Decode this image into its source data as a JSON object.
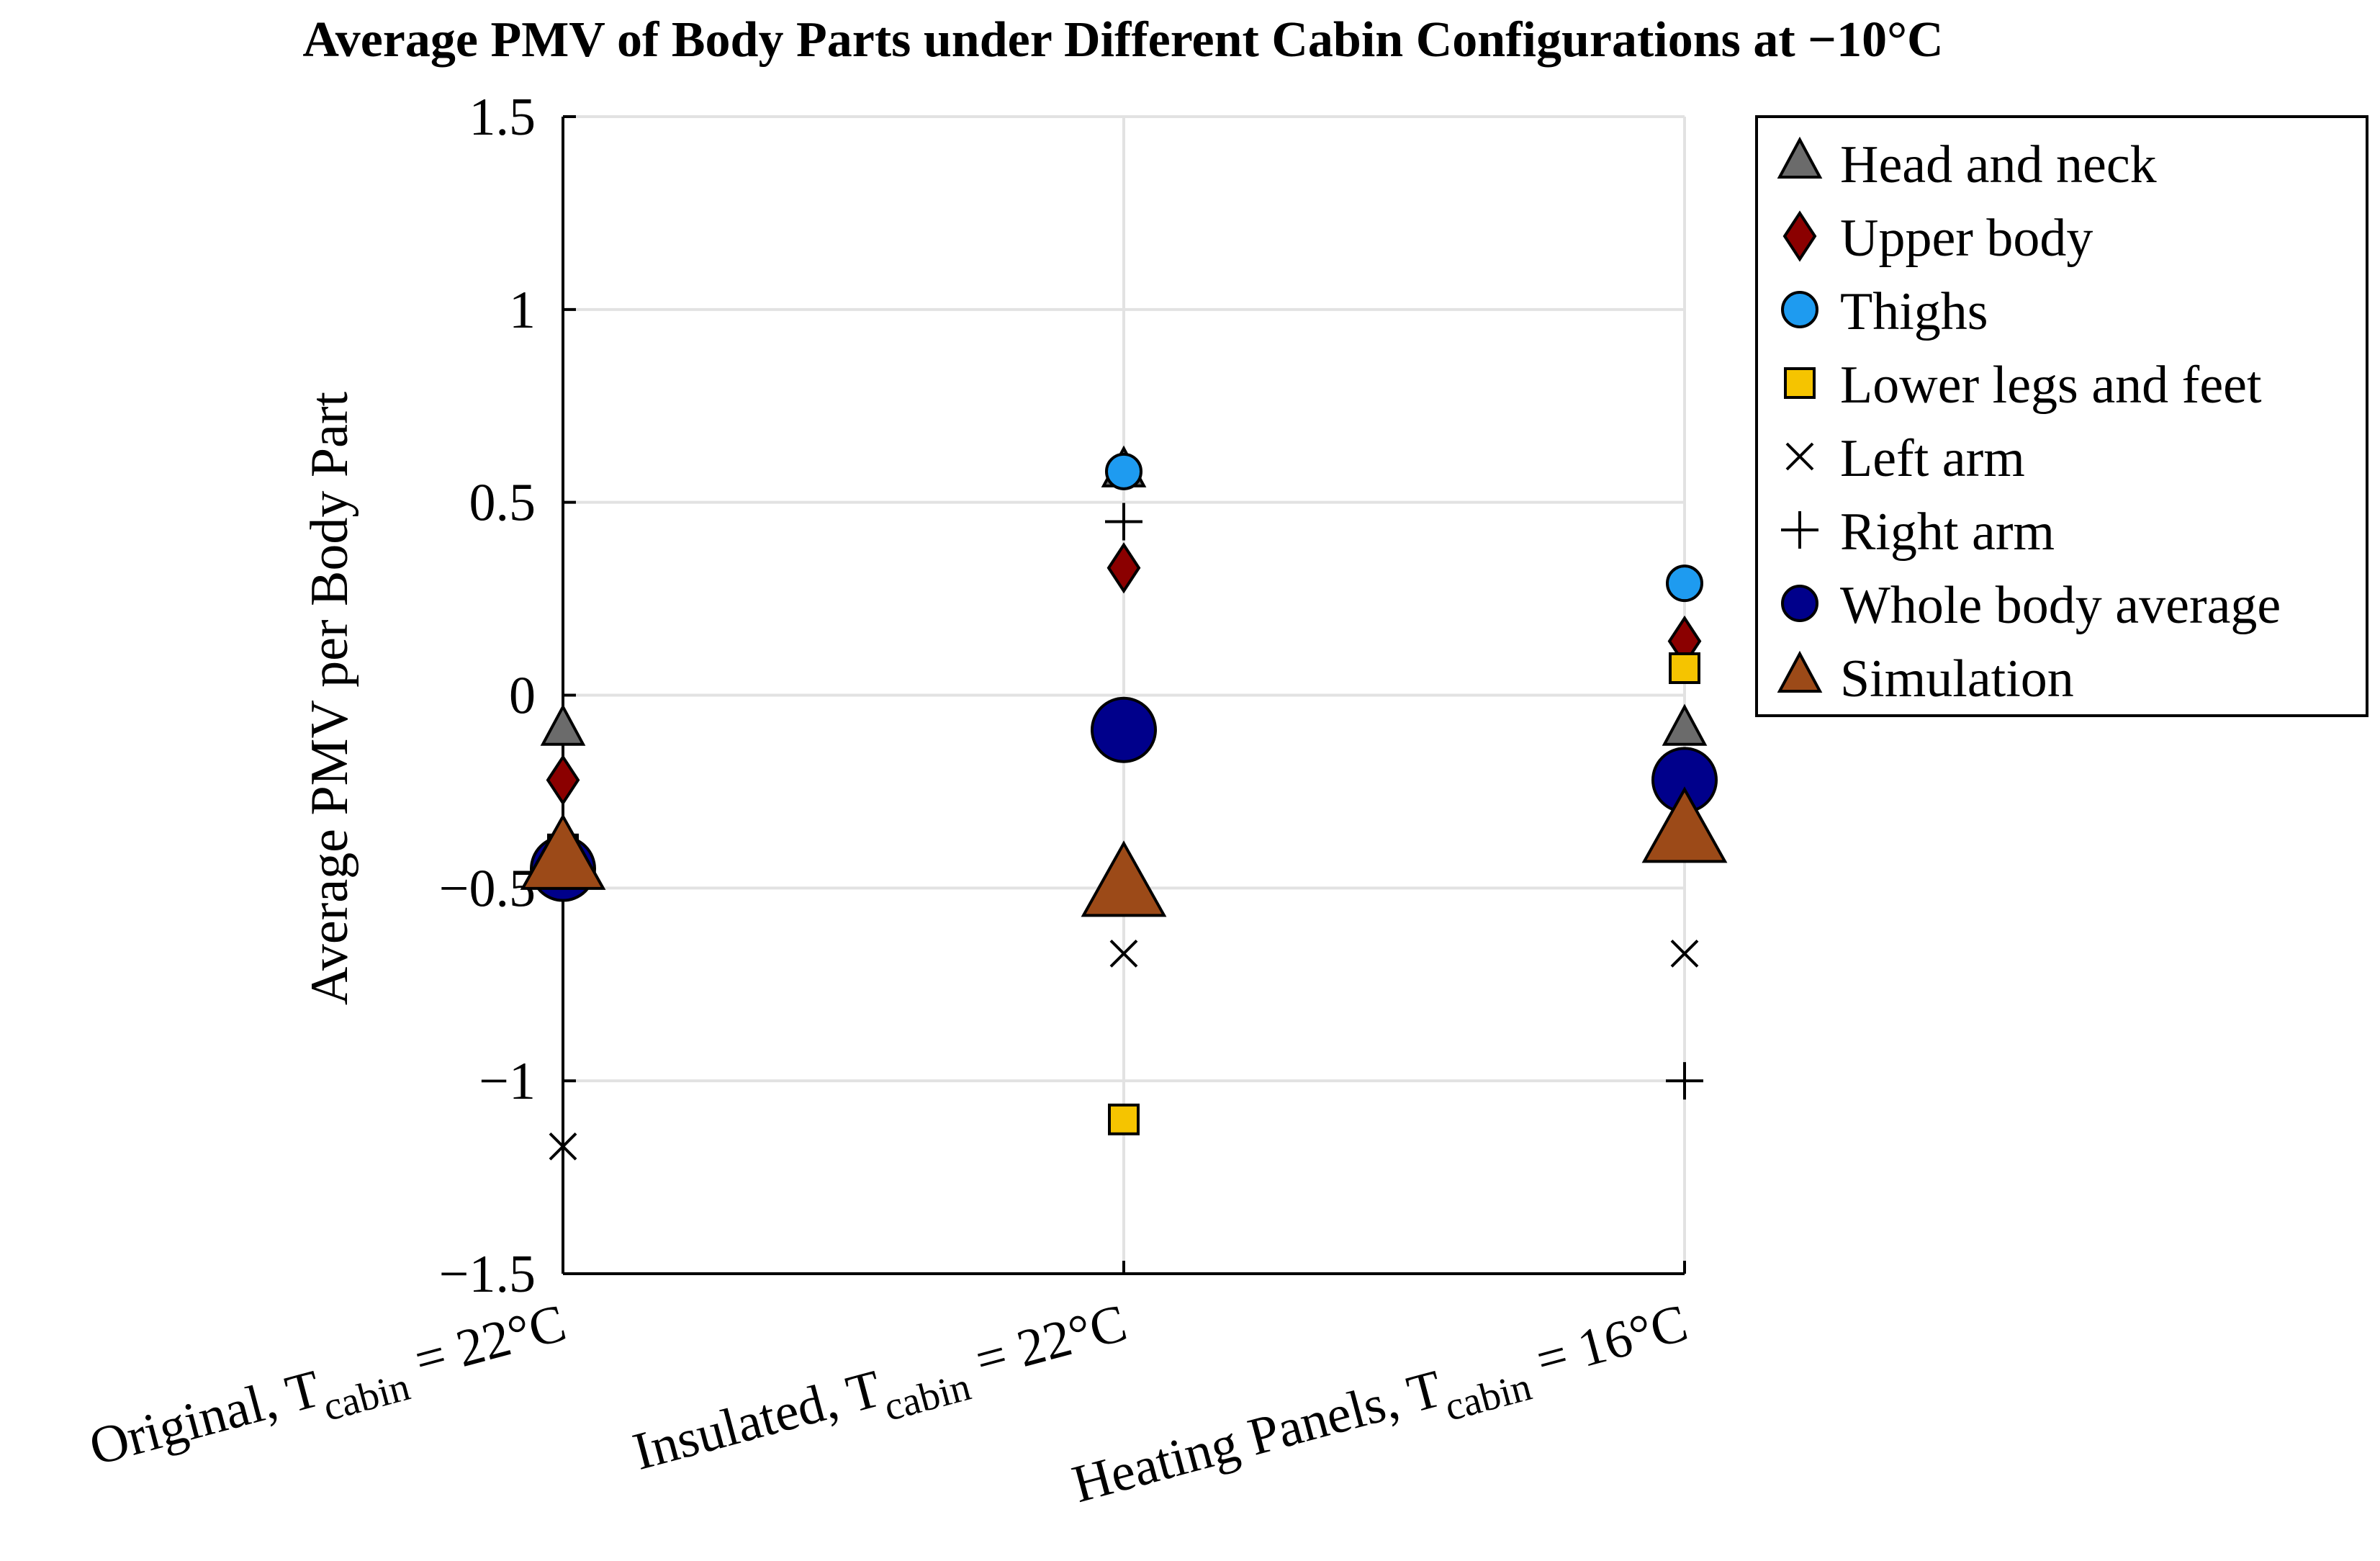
{
  "chart_data": {
    "type": "scatter",
    "title": "Average PMV of Body Parts under Different Cabin Configurations at −10°C",
    "ylabel": "Average PMV per Body Part",
    "xlabel": "",
    "ylim": [
      -1.5,
      1.5
    ],
    "yticks": [
      1.5,
      1,
      0.5,
      0,
      -0.5,
      -1,
      -1.5
    ],
    "ytick_labels": [
      "1.5",
      "1",
      "0.5",
      "0",
      "−0.5",
      "−1",
      "−1.5"
    ],
    "grid": true,
    "legend_position": "outside-top-right",
    "categories": [
      {
        "main": "Original, T",
        "sub": "cabin",
        "rest": " = 22°C"
      },
      {
        "main": "Insulated, T",
        "sub": "cabin",
        "rest": " = 22°C"
      },
      {
        "main": "Heating Panels, T",
        "sub": "cabin",
        "rest": " = 16°C"
      }
    ],
    "series": [
      {
        "name": "Head and neck",
        "marker": "triangle",
        "color": "#6b6b6b",
        "values": [
          -0.09,
          0.58,
          -0.09
        ]
      },
      {
        "name": "Upper body",
        "marker": "diamond",
        "color": "#8b0000",
        "values": [
          -0.22,
          0.33,
          0.14
        ]
      },
      {
        "name": "Thighs",
        "marker": "circle",
        "color": "#1e9bf0",
        "values": [
          -0.4,
          0.58,
          0.29
        ]
      },
      {
        "name": "Lower legs and feet",
        "marker": "square",
        "color": "#f5c400",
        "values": [
          -0.4,
          -1.1,
          0.07
        ]
      },
      {
        "name": "Left arm",
        "marker": "x",
        "color": "#000000",
        "values": [
          -1.17,
          -0.67,
          -0.67
        ]
      },
      {
        "name": "Right arm",
        "marker": "plus",
        "color": "#000000",
        "values": [
          -0.42,
          0.45,
          -1.0
        ]
      },
      {
        "name": "Whole body average",
        "marker": "circle-large",
        "color": "#00008b",
        "values": [
          -0.45,
          -0.09,
          -0.22
        ]
      },
      {
        "name": "Simulation",
        "marker": "triangle-large",
        "color": "#9c4a18",
        "values": [
          -0.43,
          -0.5,
          -0.36
        ]
      }
    ]
  }
}
